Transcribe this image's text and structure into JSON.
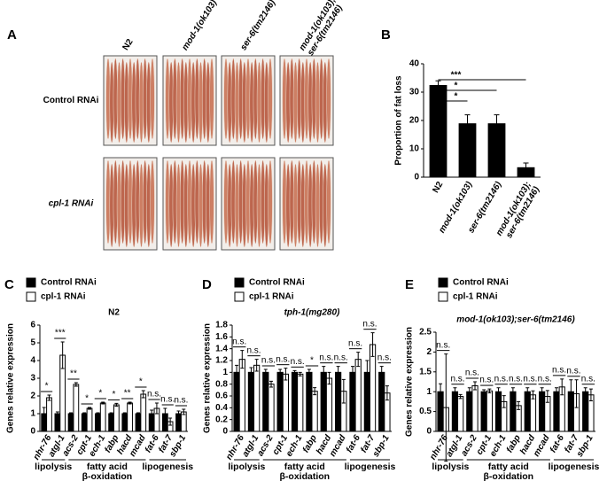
{
  "panel_a": {
    "label": "A",
    "columns": [
      "N2",
      "mod-1(ok103)",
      "ser-6(tm2146)",
      [
        "mod-1(ok103);",
        "ser-6(tm2146)"
      ]
    ],
    "rows": [
      "Control RNAi",
      "cpl-1 RNAi"
    ]
  },
  "chart_data": [
    {
      "type": "bar",
      "panel_label": "B",
      "ylabel": "Proportion of fat loss",
      "categories": [
        "N2",
        "mod-1(ok103)",
        "ser-6(tm2146)",
        [
          "mod-1(ok103);",
          "ser-6(tm2146)"
        ]
      ],
      "values": [
        32.5,
        19,
        19,
        3.5
      ],
      "errors": [
        1.5,
        3,
        3,
        1.5
      ],
      "color": "#000000",
      "ylim": [
        0,
        40
      ],
      "yticks": [
        0,
        10,
        20,
        30,
        40
      ],
      "annotations": [
        {
          "label": "***",
          "from": "N2",
          "to": [
            "mod-1(ok103);",
            "ser-6(tm2146)"
          ]
        },
        {
          "label": "*",
          "from": "N2",
          "to": "ser-6(tm2146)"
        },
        {
          "label": "*",
          "from": "N2",
          "to": "mod-1(ok103)"
        }
      ]
    },
    {
      "type": "grouped_bar",
      "panel_label": "C",
      "title": "N2",
      "ylabel": "Genes relative expression",
      "categories": [
        "nhr-76",
        "atgl-1",
        "acs-2",
        "cpt-1",
        "ech-1",
        "fabp",
        "hacd",
        "mcad",
        "fat-6",
        "fat-7",
        "sbp-1"
      ],
      "series": [
        {
          "name": "Control RNAi",
          "color": "#000000",
          "values": [
            1,
            1,
            1,
            1,
            1,
            1,
            1,
            1,
            1,
            1,
            1
          ],
          "errors": [
            0.35,
            0.1,
            0.05,
            0.05,
            0.05,
            0.05,
            0.05,
            0.05,
            0.2,
            0.3,
            0.15
          ]
        },
        {
          "name": "cpl-1 RNAi",
          "color": "#ffffff",
          "values": [
            1.9,
            4.3,
            2.65,
            1.3,
            1.6,
            1.5,
            1.6,
            2.1,
            1.3,
            0.55,
            1.1
          ],
          "errors": [
            0.15,
            0.75,
            0.1,
            0.05,
            0.05,
            0.08,
            0.05,
            0.2,
            0.3,
            0.2,
            0.15
          ]
        }
      ],
      "significance": [
        "*",
        "***",
        "**",
        "*",
        "*",
        "*",
        "**",
        "*",
        "n.s.",
        "n.s.",
        "n.s."
      ],
      "ylim": [
        0,
        6
      ],
      "yticks": [
        0,
        1,
        2,
        3,
        4,
        5,
        6
      ],
      "groups": [
        {
          "label": "lipolysis",
          "categories": [
            "nhr-76",
            "atgl-1"
          ]
        },
        {
          "label": [
            "fatty acid",
            "β-oxidation"
          ],
          "categories": [
            "acs-2",
            "cpt-1",
            "ech-1",
            "fabp",
            "hacd",
            "mcad"
          ]
        },
        {
          "label": "lipogenesis",
          "categories": [
            "fat-6",
            "fat-7",
            "sbp-1"
          ]
        }
      ]
    },
    {
      "type": "grouped_bar",
      "panel_label": "D",
      "title": "tph-1(mg280)",
      "ylabel": "Genes relative expression",
      "categories": [
        "nhr-76",
        "atgl-1",
        "acs-2",
        "cpt-1",
        "ech-1",
        "fabp",
        "hacd",
        "mcad",
        "fat-6",
        "fat-7",
        "sbp-1"
      ],
      "series": [
        {
          "name": "Control RNAi",
          "color": "#000000",
          "values": [
            1,
            1,
            1,
            1,
            1,
            1,
            1,
            1,
            1,
            1,
            1
          ],
          "errors": [
            0.12,
            0.08,
            0.05,
            0.05,
            0.03,
            0.05,
            0.1,
            0.1,
            0.1,
            0.2,
            0.1
          ]
        },
        {
          "name": "cpl-1 RNAi",
          "color": "#ffffff",
          "values": [
            1.22,
            1.12,
            0.8,
            0.97,
            0.97,
            0.68,
            0.9,
            0.68,
            1.22,
            1.47,
            0.65
          ],
          "errors": [
            0.15,
            0.1,
            0.05,
            0.1,
            0.03,
            0.06,
            0.1,
            0.2,
            0.12,
            0.2,
            0.12
          ]
        }
      ],
      "significance": [
        "n.s.",
        "n.s.",
        "n.s.",
        "n.s.",
        "n.s.",
        "*",
        "n.s.",
        "n.s.",
        "n.s.",
        "n.s.",
        "n.s."
      ],
      "ylim": [
        0,
        1.8
      ],
      "yticks": [
        0,
        0.2,
        0.4,
        0.6,
        0.8,
        1,
        1.2,
        1.4,
        1.6,
        1.8
      ],
      "groups": [
        {
          "label": "lipolysis",
          "categories": [
            "nhr-76",
            "atgl-1"
          ]
        },
        {
          "label": [
            "fatty acid",
            "β-oxidation"
          ],
          "categories": [
            "acs-2",
            "cpt-1",
            "ech-1",
            "fabp",
            "hacd",
            "mcad"
          ]
        },
        {
          "label": "lipogenesis",
          "categories": [
            "fat-6",
            "fat-7",
            "sbp-1"
          ]
        }
      ]
    },
    {
      "type": "grouped_bar",
      "panel_label": "E",
      "title": "mod-1(ok103);ser-6(tm2146)",
      "ylabel": "Genes relative expression",
      "categories": [
        "nhr-76",
        "atgl-1",
        "acs-2",
        "cpt-1",
        "ech-1",
        "fabp",
        "hacd",
        "mcad",
        "fat-6",
        "fat-7",
        "sbp-1"
      ],
      "series": [
        {
          "name": "Control RNAi",
          "color": "#000000",
          "values": [
            1,
            1,
            1,
            1,
            1,
            1,
            1,
            1,
            1,
            1,
            1
          ],
          "errors": [
            0.2,
            0.1,
            0.1,
            0.05,
            0.1,
            0.1,
            0.1,
            0.1,
            0.1,
            0.3,
            0.1
          ]
        },
        {
          "name": "cpl-1 RNAi",
          "color": "#ffffff",
          "values": [
            0.6,
            0.88,
            1.15,
            1.02,
            0.75,
            0.65,
            0.92,
            0.88,
            1.12,
            0.95,
            0.92
          ],
          "errors": [
            1.35,
            0.05,
            0.1,
            0.05,
            0.15,
            0.1,
            0.1,
            0.15,
            0.2,
            0.35,
            0.15
          ]
        }
      ],
      "significance": [
        "n.s.",
        "n.s.",
        "n.s.",
        "n.s.",
        "n.s.",
        "n.s.",
        "n.s.",
        "n.s.",
        "n.s.",
        "n.s.",
        "n.s."
      ],
      "ylim": [
        0,
        2.5
      ],
      "yticks": [
        0,
        0.5,
        1,
        1.5,
        2,
        2.5
      ],
      "groups": [
        {
          "label": "lipolysis",
          "categories": [
            "nhr-76",
            "atgl-1"
          ]
        },
        {
          "label": [
            "fatty acid",
            "β-oxidation"
          ],
          "categories": [
            "acs-2",
            "cpt-1",
            "ech-1",
            "fabp",
            "hacd",
            "mcad"
          ]
        },
        {
          "label": "lipogenesis",
          "categories": [
            "fat-6",
            "fat-7",
            "sbp-1"
          ]
        }
      ]
    }
  ]
}
